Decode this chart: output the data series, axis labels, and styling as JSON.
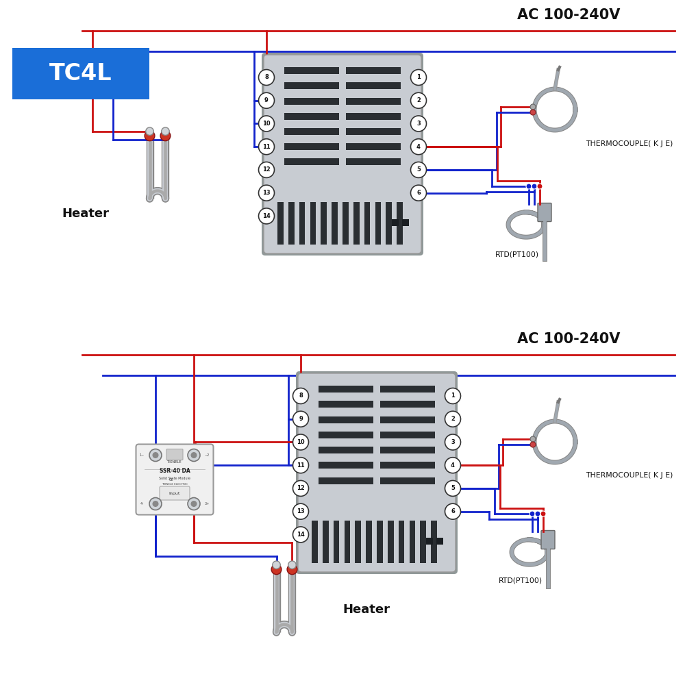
{
  "bg_color": "#ffffff",
  "red_color": "#cc1111",
  "blue_color": "#1122cc",
  "gray_light": "#c8ccd2",
  "gray_mid": "#a0a8b0",
  "gray_dark": "#606870",
  "pin_bg": "#ffffff",
  "pin_border": "#444444",
  "tc4l_bg": "#1a6ed8",
  "tc4l_text": "#ffffff",
  "ac_label": "AC 100-240V",
  "tc4l_label": "TC4L",
  "heater_label1": "Heater",
  "heater_label2": "Heater",
  "thermocouple_label1": "THERMOCOUPLE( K J E)",
  "thermocouple_label2": "THERMOCOUPLE( K J E)",
  "rtd_label1": "RTD(PT100)",
  "rtd_label2": "RTD(PT100)",
  "controller_pins_left": [
    "8",
    "9",
    "10",
    "11",
    "12",
    "13",
    "14"
  ],
  "controller_pins_right": [
    "1",
    "2",
    "3",
    "4",
    "5",
    "6"
  ],
  "lw": 2.0,
  "lw_thick": 3.0
}
